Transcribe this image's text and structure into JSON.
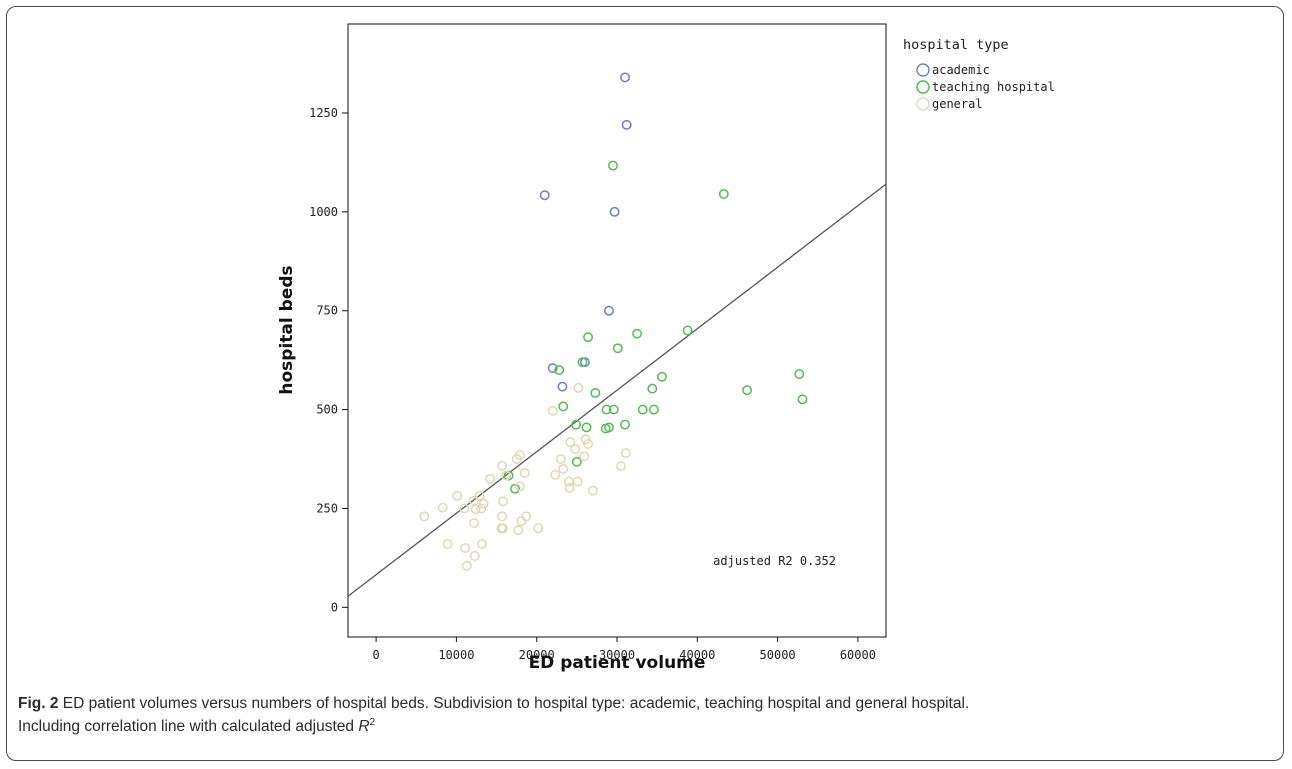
{
  "chart_data": {
    "type": "scatter",
    "xlabel": "ED patient volume",
    "ylabel": "hospital beds",
    "xlim": [
      -3500,
      63500
    ],
    "ylim": [
      -75,
      1475
    ],
    "xticks": [
      0,
      10000,
      20000,
      30000,
      40000,
      50000,
      60000
    ],
    "yticks": [
      0,
      250,
      500,
      750,
      1000,
      1250
    ],
    "xtick_labels": [
      "0",
      "10000",
      "20000",
      "30000",
      "40000",
      "50000",
      "60000"
    ],
    "ytick_labels": [
      "0",
      "250",
      "500",
      "750",
      "1000",
      "1250"
    ],
    "grid": false,
    "legend": {
      "title": "hospital type",
      "position": "outside-right"
    },
    "series": [
      {
        "name": "academic",
        "color": "#6a7fc4",
        "points": [
          [
            31000,
            1340
          ],
          [
            31200,
            1220
          ],
          [
            21000,
            1042
          ],
          [
            29700,
            1000
          ],
          [
            29000,
            750
          ],
          [
            22000,
            605
          ],
          [
            26000,
            620
          ],
          [
            23200,
            558
          ]
        ]
      },
      {
        "name": "teaching hospital",
        "color": "#4cbf4c",
        "points": [
          [
            29500,
            1117
          ],
          [
            43300,
            1045
          ],
          [
            38800,
            700
          ],
          [
            32500,
            692
          ],
          [
            26400,
            683
          ],
          [
            30100,
            655
          ],
          [
            25700,
            620
          ],
          [
            22800,
            600
          ],
          [
            35600,
            583
          ],
          [
            27300,
            542
          ],
          [
            34400,
            553
          ],
          [
            52700,
            590
          ],
          [
            46200,
            549
          ],
          [
            53100,
            526
          ],
          [
            23300,
            508
          ],
          [
            28700,
            500
          ],
          [
            29600,
            500
          ],
          [
            33200,
            500
          ],
          [
            34600,
            500
          ],
          [
            24900,
            462
          ],
          [
            26200,
            455
          ],
          [
            31000,
            462
          ],
          [
            28600,
            452
          ],
          [
            29000,
            455
          ],
          [
            25000,
            368
          ],
          [
            16500,
            333
          ],
          [
            17300,
            300
          ]
        ]
      },
      {
        "name": "general",
        "color": "#e0d8b4",
        "points": [
          [
            22000,
            497
          ],
          [
            25200,
            555
          ],
          [
            24200,
            418
          ],
          [
            26100,
            425
          ],
          [
            24800,
            400
          ],
          [
            26400,
            413
          ],
          [
            31100,
            390
          ],
          [
            23000,
            375
          ],
          [
            25900,
            382
          ],
          [
            17500,
            375
          ],
          [
            17900,
            385
          ],
          [
            30500,
            357
          ],
          [
            23300,
            350
          ],
          [
            15700,
            358
          ],
          [
            18500,
            340
          ],
          [
            14200,
            325
          ],
          [
            24000,
            318
          ],
          [
            25100,
            318
          ],
          [
            24100,
            302
          ],
          [
            27000,
            295
          ],
          [
            22300,
            335
          ],
          [
            16200,
            333
          ],
          [
            17900,
            306
          ],
          [
            12900,
            282
          ],
          [
            10100,
            282
          ],
          [
            12200,
            270
          ],
          [
            13400,
            262
          ],
          [
            15800,
            268
          ],
          [
            11000,
            250
          ],
          [
            8300,
            252
          ],
          [
            13100,
            250
          ],
          [
            12400,
            248
          ],
          [
            6000,
            230
          ],
          [
            15700,
            230
          ],
          [
            18700,
            230
          ],
          [
            18100,
            218
          ],
          [
            12200,
            213
          ],
          [
            15600,
            200
          ],
          [
            15800,
            200
          ],
          [
            20200,
            200
          ],
          [
            17700,
            195
          ],
          [
            8900,
            160
          ],
          [
            13200,
            160
          ],
          [
            11100,
            150
          ],
          [
            12300,
            130
          ],
          [
            11300,
            105
          ]
        ]
      }
    ],
    "regression_line": {
      "x": [
        -3500,
        63500
      ],
      "y": [
        28,
        1070
      ]
    },
    "annotation": "adjusted R2 0.352"
  },
  "caption": {
    "label": "Fig. 2",
    "text_line1": " ED patient volumes versus numbers of hospital beds. Subdivision to hospital type: academic, teaching hospital and general hospital.",
    "text_line2": "Including correlation line with calculated adjusted ",
    "r_symbol": "R",
    "r_superscript": "2"
  }
}
